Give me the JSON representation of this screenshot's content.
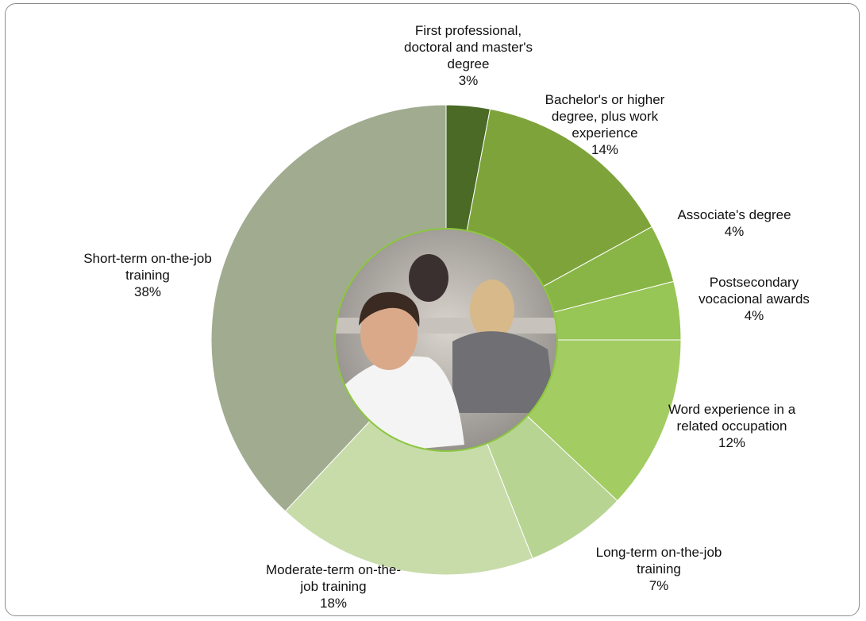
{
  "chart_data": {
    "type": "donut",
    "categories": [
      "First professional, doctoral and master's degree",
      "Bachelor's or higher degree, plus work experience",
      "Associate's degree",
      "Postsecondary vocacional awards",
      "Word experience in a related occupation",
      "Long-term on-the-job training",
      "Moderate-term on-the-job training",
      "Short-term on-the-job training"
    ],
    "values": [
      3,
      14,
      4,
      4,
      12,
      7,
      18,
      38
    ],
    "value_labels": [
      "3%",
      "14%",
      "4%",
      "4%",
      "12%",
      "7%",
      "18%",
      "38%"
    ],
    "colors": [
      "#4a6a25",
      "#7ea33b",
      "#88b545",
      "#97c556",
      "#a3cc62",
      "#b7d493",
      "#c8dcaa",
      "#a1ab8f"
    ]
  }
}
